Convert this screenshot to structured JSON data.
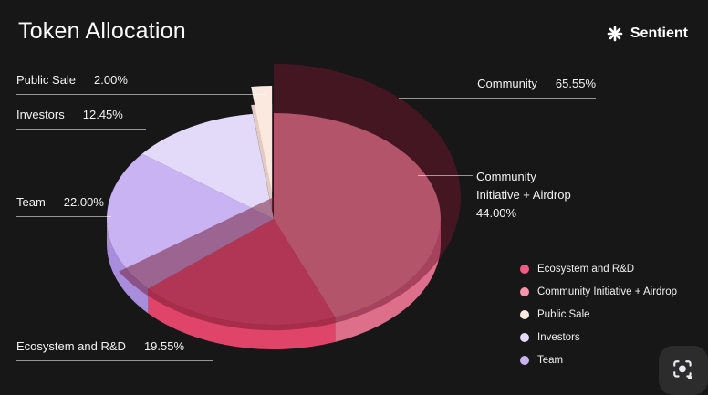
{
  "title": "Token Allocation",
  "brand": {
    "name": "Sentient",
    "icon": "sentient-flower-icon"
  },
  "chart_data": {
    "type": "pie",
    "title": "Token Allocation",
    "start_angle_deg": 0,
    "direction": "clockwise",
    "slices": [
      {
        "label": "Community Initiative + Airdrop",
        "value": 44.0,
        "pct_label": "44.00%",
        "color": "#f893a9",
        "wall": "#dd6f8b"
      },
      {
        "label": "Ecosystem and R&D",
        "value": 19.55,
        "pct_label": "19.55%",
        "color": "#f2567e",
        "wall": "#e04469"
      },
      {
        "label": "Team",
        "value": 22.0,
        "pct_label": "22.00%",
        "color": "#c9b3f3",
        "wall": "#a88ddc"
      },
      {
        "label": "Investors",
        "value": 12.45,
        "pct_label": "12.45%",
        "color": "#e3d9f9"
      },
      {
        "label": "Public Sale",
        "value": 2.0,
        "pct_label": "2.00%",
        "color": "#fbe9e0",
        "wall": "#e3cbc2",
        "exploded": true
      }
    ],
    "group": {
      "label": "Community",
      "value": 65.55,
      "pct_label": "65.55%",
      "overlay_color": "rgba(112,22,46,0.5)",
      "includes": [
        "Public Sale",
        "Community Initiative + Airdrop",
        "Ecosystem and R&D"
      ]
    },
    "legend_position": "bottom-right",
    "background": "#171717"
  },
  "callouts": {
    "public_sale": {
      "label": "Public Sale",
      "pct": "2.00%"
    },
    "investors": {
      "label": "Investors",
      "pct": "12.45%"
    },
    "team": {
      "label": "Team",
      "pct": "22.00%"
    },
    "ecosystem": {
      "label": "Ecosystem and R&D",
      "pct": "19.55%"
    },
    "community": {
      "label": "Community",
      "pct": "65.55%"
    },
    "community_initiative": {
      "line1": "Community",
      "line2": "Initiative + Airdrop",
      "pct": "44.00%"
    }
  },
  "legend": [
    {
      "label": "Ecosystem and R&D",
      "color": "#ef5c82"
    },
    {
      "label": "Community Initiative + Airdrop",
      "color": "#f795aa"
    },
    {
      "label": "Public Sale",
      "color": "#fbe9e0"
    },
    {
      "label": "Investors",
      "color": "#e3d9f9"
    },
    {
      "label": "Team",
      "color": "#c9b3f3"
    }
  ],
  "corner_widget": {
    "icon": "lens-icon"
  }
}
